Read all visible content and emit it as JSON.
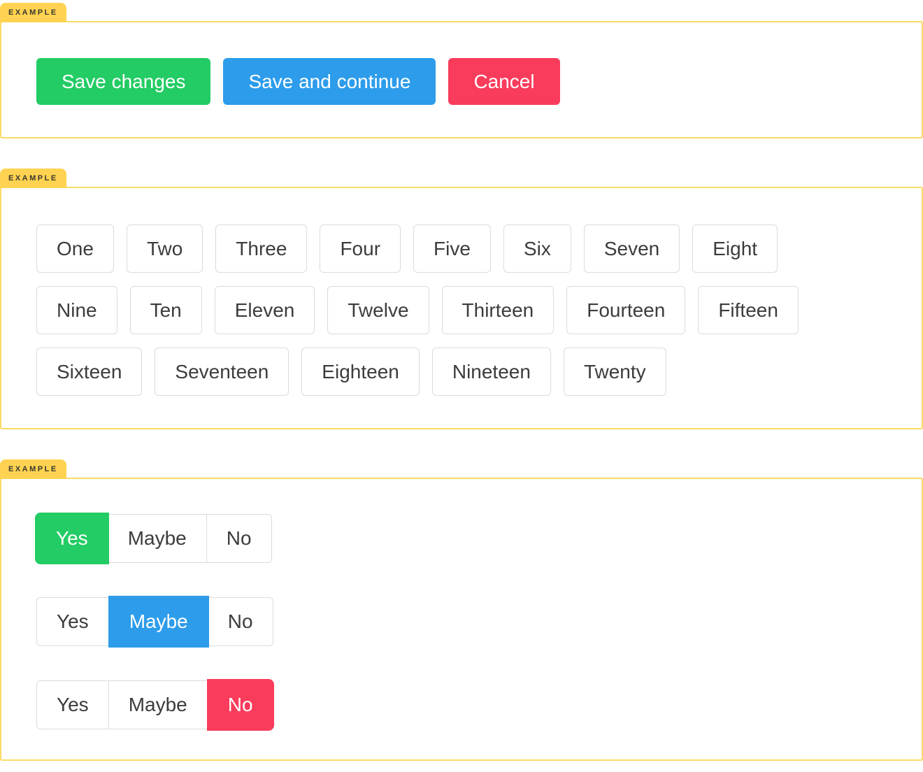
{
  "colors": {
    "green": "#23CC64",
    "blue": "#2D9CEB",
    "red": "#FA3C5C",
    "tag_background": "#FFD351",
    "box_border": "#FBDB64",
    "button_border": "#DBDBDB",
    "button_text": "#3C3C3C"
  },
  "sections": [
    {
      "tag": "EXAMPLE",
      "type": "action-buttons",
      "buttons": [
        {
          "label": "Save changes",
          "color": "green"
        },
        {
          "label": "Save and continue",
          "color": "blue"
        },
        {
          "label": "Cancel",
          "color": "red"
        }
      ]
    },
    {
      "tag": "EXAMPLE",
      "type": "outline-buttons",
      "rows": [
        [
          "One",
          "Two",
          "Three",
          "Four",
          "Five",
          "Six",
          "Seven",
          "Eight"
        ],
        [
          "Nine",
          "Ten",
          "Eleven",
          "Twelve",
          "Thirteen",
          "Fourteen",
          "Fifteen"
        ],
        [
          "Sixteen",
          "Seventeen",
          "Eighteen",
          "Nineteen",
          "Twenty"
        ]
      ]
    },
    {
      "tag": "EXAMPLE",
      "type": "segmented-controls",
      "groups": [
        {
          "options": [
            "Yes",
            "Maybe",
            "No"
          ],
          "selected_index": 0,
          "selected_color": "green"
        },
        {
          "options": [
            "Yes",
            "Maybe",
            "No"
          ],
          "selected_index": 1,
          "selected_color": "blue"
        },
        {
          "options": [
            "Yes",
            "Maybe",
            "No"
          ],
          "selected_index": 2,
          "selected_color": "red"
        }
      ]
    }
  ]
}
